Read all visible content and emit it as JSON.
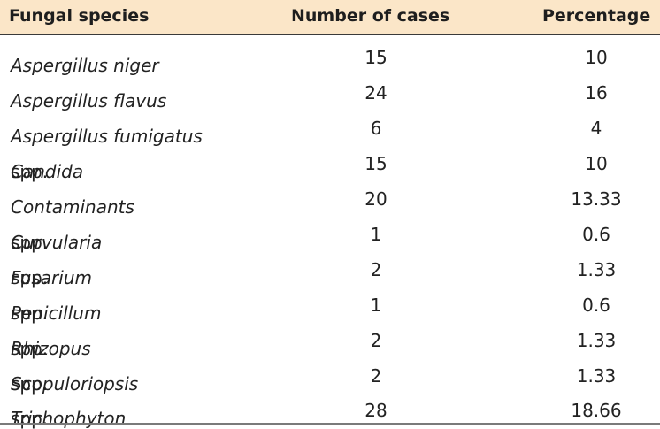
{
  "table": {
    "headers": {
      "species": "Fungal species",
      "cases": "Number of cases",
      "percentage": "Percentage"
    },
    "rows": [
      {
        "genus": "Aspergillus niger",
        "suffix": "",
        "cases": "15",
        "percentage": "10"
      },
      {
        "genus": "Aspergillus flavus",
        "suffix": "",
        "cases": "24",
        "percentage": "16"
      },
      {
        "genus": "Aspergillus fumigatus",
        "suffix": "",
        "cases": "6",
        "percentage": "4"
      },
      {
        "genus": "Candida",
        "suffix": " spp.",
        "cases": "15",
        "percentage": "10"
      },
      {
        "genus": "Contaminants",
        "suffix": "",
        "cases": "20",
        "percentage": "13.33"
      },
      {
        "genus": "Curvularia",
        "suffix": " spp.",
        "cases": "1",
        "percentage": "0.6"
      },
      {
        "genus": "Fusarium",
        "suffix": " spp.",
        "cases": "2",
        "percentage": "1.33"
      },
      {
        "genus": "Penicillum",
        "suffix": " spp.",
        "cases": "1",
        "percentage": "0.6"
      },
      {
        "genus": "Rhizopus",
        "suffix": " spp.",
        "cases": "2",
        "percentage": "1.33"
      },
      {
        "genus": "Scopuloriopsis",
        "suffix": " spp.",
        "cases": "2",
        "percentage": "1.33"
      },
      {
        "genus": "Trichophyton",
        "suffix": " spp.",
        "cases": "28",
        "percentage": "18.66"
      }
    ]
  }
}
